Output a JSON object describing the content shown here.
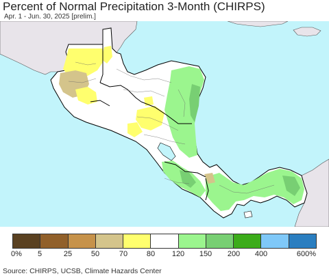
{
  "header": {
    "title": "Percent of Normal Precipitation 3-Month (CHIRPS)",
    "subtitle": "Apr. 1 - Jun. 30, 2025 [prelim.]"
  },
  "map": {
    "colors": {
      "ocean": "#c2f4fb",
      "outside_land": "#e8e4ea",
      "border": "#000000"
    }
  },
  "legend": {
    "colors": [
      "#5a4121",
      "#91602a",
      "#c6924a",
      "#d4c48b",
      "#ffff6e",
      "#ffffff",
      "#9bf58e",
      "#78cf73",
      "#3cac1a",
      "#7fc8f8",
      "#2a7ec0"
    ],
    "labels": [
      "0%",
      "5",
      "25",
      "50",
      "70",
      "80",
      "120",
      "150",
      "200",
      "400",
      "600%"
    ]
  },
  "footer": {
    "source": "Source: CHIRPS, UCSB, Climate Hazards Center"
  }
}
